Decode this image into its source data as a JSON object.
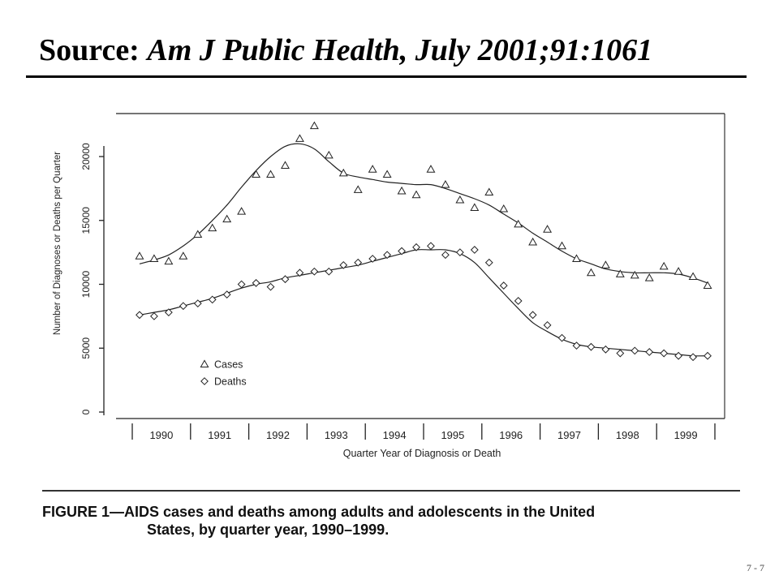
{
  "slide": {
    "title_prefix": "Source:",
    "title_citation": "Am J Public Health, July 2001;91:1061",
    "page_number": "7 - 7"
  },
  "caption": {
    "lead": "FIGURE 1—AIDS cases and deaths among adults and adolescents in the United",
    "rest": "States, by quarter year, 1990–1999."
  },
  "colors": {
    "ink": "#222222",
    "title": "#000000"
  },
  "chart_data": {
    "type": "scatter",
    "title": "",
    "xlabel": "Quarter Year of Diagnosis or Death",
    "ylabel": "Number of Diagnoses or Deaths per Quarter",
    "xlim": [
      1990,
      2000
    ],
    "ylim": [
      0,
      22000
    ],
    "y_ticks": [
      0,
      5000,
      10000,
      15000,
      20000
    ],
    "y_tick_labels": [
      "0",
      "5000",
      "10000",
      "15000",
      "20000"
    ],
    "x_categories": [
      "1990",
      "1991",
      "1992",
      "1993",
      "1994",
      "1995",
      "1996",
      "1997",
      "1998",
      "1999"
    ],
    "grid": false,
    "legend_position": "bottom-left",
    "x": [
      1990.125,
      1990.375,
      1990.625,
      1990.875,
      1991.125,
      1991.375,
      1991.625,
      1991.875,
      1992.125,
      1992.375,
      1992.625,
      1992.875,
      1993.125,
      1993.375,
      1993.625,
      1993.875,
      1994.125,
      1994.375,
      1994.625,
      1994.875,
      1995.125,
      1995.375,
      1995.625,
      1995.875,
      1996.125,
      1996.375,
      1996.625,
      1996.875,
      1997.125,
      1997.375,
      1997.625,
      1997.875,
      1998.125,
      1998.375,
      1998.625,
      1998.875,
      1999.125,
      1999.375,
      1999.625,
      1999.875
    ],
    "series": [
      {
        "name": "Cases",
        "marker": "triangle",
        "values": [
          12200,
          12000,
          11800,
          12200,
          13900,
          14400,
          15100,
          15700,
          18600,
          18600,
          19300,
          21400,
          22400,
          20100,
          18700,
          17400,
          19000,
          18600,
          17300,
          17000,
          19000,
          17800,
          16600,
          16000,
          17200,
          15900,
          14700,
          13300,
          14300,
          13000,
          12000,
          10900,
          11500,
          10800,
          10700,
          10500,
          11400,
          11000,
          10600,
          9900
        ],
        "trend": [
          11600,
          11900,
          12300,
          13000,
          13900,
          15000,
          16200,
          17600,
          18900,
          20000,
          20800,
          21000,
          20600,
          19600,
          18700,
          18400,
          18200,
          18000,
          17900,
          17800,
          17800,
          17500,
          17100,
          16700,
          16200,
          15500,
          14800,
          14000,
          13300,
          12600,
          12000,
          11600,
          11200,
          11000,
          10900,
          10900,
          10900,
          10800,
          10500,
          10100
        ]
      },
      {
        "name": "Deaths",
        "marker": "diamond",
        "values": [
          7600,
          7500,
          7800,
          8300,
          8500,
          8800,
          9200,
          10000,
          10100,
          9800,
          10400,
          10900,
          11000,
          11000,
          11500,
          11700,
          12000,
          12300,
          12600,
          12900,
          13000,
          12300,
          12500,
          12700,
          11700,
          9900,
          8700,
          7600,
          6800,
          5800,
          5200,
          5100,
          4900,
          4600,
          4800,
          4700,
          4600,
          4400,
          4300,
          4400
        ],
        "trend": [
          7600,
          7800,
          8000,
          8300,
          8600,
          8900,
          9300,
          9700,
          10000,
          10200,
          10500,
          10700,
          10900,
          11100,
          11300,
          11500,
          11800,
          12100,
          12400,
          12700,
          12700,
          12700,
          12400,
          11700,
          10500,
          9300,
          8100,
          7000,
          6300,
          5700,
          5300,
          5100,
          5000,
          4900,
          4800,
          4700,
          4600,
          4500,
          4400,
          4400
        ]
      }
    ]
  }
}
